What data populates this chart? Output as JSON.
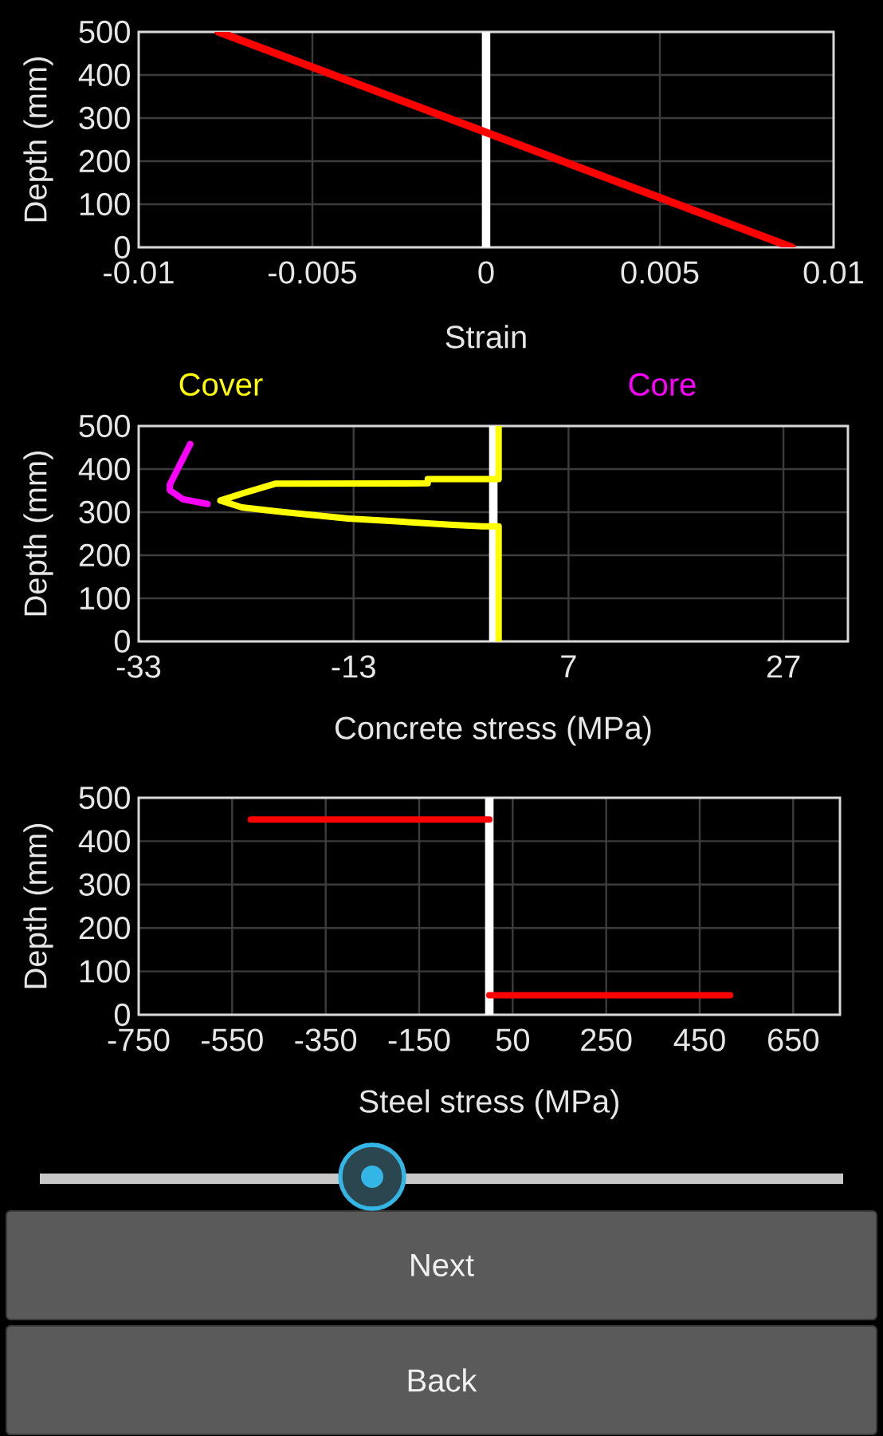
{
  "chart_data": [
    {
      "type": "line",
      "xlabel": "Strain",
      "ylabel": "Depth (mm)",
      "xlim": [
        -0.01,
        0.01
      ],
      "xticks": [
        -0.01,
        -0.005,
        0,
        0.005,
        0.01
      ],
      "ylim": [
        0,
        500
      ],
      "yticks": [
        0,
        100,
        200,
        300,
        400,
        500
      ],
      "grid": true,
      "ref_lines": [
        {
          "axis": "x",
          "value": 0,
          "color": "#ffffff"
        }
      ],
      "series": [
        {
          "color": "#ff0000",
          "x": [
            -0.0077,
            0.0088
          ],
          "values": [
            500,
            0
          ]
        }
      ]
    },
    {
      "type": "line",
      "xlabel": "Concrete stress (MPa)",
      "ylabel": "Depth (mm)",
      "xlim": [
        -33,
        33
      ],
      "xticks": [
        -33,
        -13,
        7,
        27
      ],
      "ylim": [
        0,
        500
      ],
      "yticks": [
        0,
        100,
        200,
        300,
        400,
        500
      ],
      "grid": true,
      "legend": "top",
      "ref_lines": [
        {
          "axis": "x",
          "value": 0,
          "color": "#ffffff"
        }
      ],
      "series": [
        {
          "name": "Cover",
          "color": "#ffff00",
          "x": [
            0.5,
            0.5,
            -1,
            -4,
            -9.3,
            -13.5,
            -19.8,
            -23.4,
            -25.4,
            -23.4,
            -20.3,
            -6.1,
            -6.1,
            0.5,
            0.5
          ],
          "values": [
            0,
            267,
            267,
            271,
            279,
            285,
            301,
            311,
            327,
            343,
            366,
            367,
            377,
            377,
            500
          ]
        },
        {
          "name": "Core",
          "color": "#ff00ff",
          "x": [
            -28.2,
            -30.1,
            -30.1,
            -28.9,
            -26.6
          ],
          "values": [
            458,
            364,
            351,
            330,
            319
          ]
        }
      ]
    },
    {
      "type": "line",
      "xlabel": "Steel stress (MPa)",
      "ylabel": "Depth (mm)",
      "xlim": [
        -750,
        750
      ],
      "xticks": [
        -750,
        -550,
        -350,
        -150,
        50,
        250,
        450,
        650
      ],
      "ylim": [
        0,
        500
      ],
      "yticks": [
        0,
        100,
        200,
        300,
        400,
        500
      ],
      "grid": true,
      "ref_lines": [
        {
          "axis": "x",
          "value": 0,
          "color": "#ffffff"
        }
      ],
      "series": [
        {
          "color": "#ff0000",
          "x": [
            -510,
            0
          ],
          "values": [
            450,
            450
          ]
        },
        {
          "color": "#ff0000",
          "x": [
            0,
            515
          ],
          "values": [
            45,
            45
          ]
        }
      ]
    },
    {
      "type": "other",
      "annotations": [
        "Next",
        "Back"
      ]
    }
  ]
}
